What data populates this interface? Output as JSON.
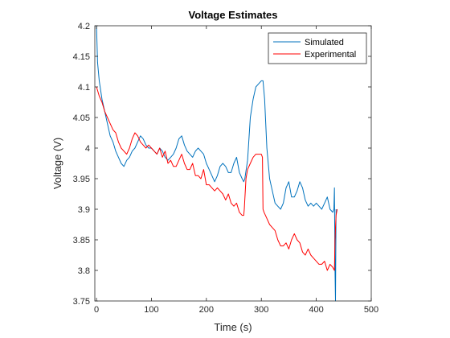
{
  "chart_data": {
    "type": "line",
    "title": "Voltage Estimates",
    "xlabel": "Time (s)",
    "ylabel": "Voltage (V)",
    "xlim": [
      -3,
      500
    ],
    "ylim": [
      3.75,
      4.2
    ],
    "xticks": [
      0,
      100,
      200,
      300,
      400,
      500
    ],
    "xtick_labels": [
      "0",
      "100",
      "200",
      "300",
      "400",
      "500"
    ],
    "yticks": [
      3.75,
      3.8,
      3.85,
      3.9,
      3.95,
      4.0,
      4.05,
      4.1,
      4.15,
      4.2
    ],
    "ytick_labels": [
      "3.75",
      "3.8",
      "3.85",
      "3.9",
      "3.95",
      "4",
      "4.05",
      "4.1",
      "4.15",
      "4.2"
    ],
    "grid": false,
    "legend_position": "top-right",
    "series": [
      {
        "name": "Simulated",
        "color": "#0072BD",
        "x": [
          0,
          2,
          5,
          10,
          15,
          20,
          25,
          30,
          35,
          40,
          45,
          50,
          55,
          60,
          65,
          70,
          75,
          80,
          85,
          90,
          95,
          100,
          105,
          110,
          115,
          120,
          125,
          130,
          135,
          140,
          145,
          150,
          155,
          160,
          165,
          170,
          175,
          180,
          185,
          190,
          195,
          200,
          205,
          210,
          215,
          220,
          225,
          230,
          235,
          240,
          245,
          250,
          255,
          260,
          265,
          268,
          270,
          275,
          280,
          285,
          290,
          295,
          300,
          303,
          306,
          310,
          315,
          320,
          325,
          330,
          335,
          340,
          345,
          350,
          355,
          360,
          365,
          370,
          375,
          380,
          385,
          390,
          395,
          400,
          405,
          410,
          415,
          420,
          425,
          430,
          432,
          433,
          434,
          435,
          436
        ],
        "y": [
          4.2,
          4.14,
          4.11,
          4.08,
          4.06,
          4.04,
          4.02,
          4.01,
          3.995,
          3.985,
          3.975,
          3.97,
          3.98,
          3.985,
          3.995,
          4.0,
          4.01,
          4.02,
          4.015,
          4.005,
          4.0,
          4.0,
          3.995,
          3.99,
          4.0,
          3.995,
          3.985,
          3.98,
          3.985,
          3.99,
          4.0,
          4.015,
          4.02,
          4.005,
          3.995,
          3.99,
          3.985,
          3.995,
          4.0,
          3.995,
          3.99,
          3.975,
          3.965,
          3.955,
          3.945,
          3.955,
          3.97,
          3.975,
          3.97,
          3.96,
          3.96,
          3.975,
          3.985,
          3.96,
          3.95,
          3.945,
          3.95,
          3.98,
          4.05,
          4.08,
          4.1,
          4.105,
          4.11,
          4.11,
          4.08,
          4.0,
          3.95,
          3.93,
          3.91,
          3.905,
          3.9,
          3.91,
          3.935,
          3.945,
          3.92,
          3.92,
          3.93,
          3.945,
          3.935,
          3.915,
          3.905,
          3.91,
          3.905,
          3.91,
          3.905,
          3.9,
          3.91,
          3.92,
          3.9,
          3.895,
          3.9,
          3.935,
          3.8,
          3.75,
          3.9
        ]
      },
      {
        "name": "Experimental",
        "color": "#FF0000",
        "x": [
          0,
          5,
          10,
          15,
          20,
          25,
          30,
          35,
          40,
          45,
          50,
          55,
          60,
          65,
          70,
          75,
          80,
          85,
          90,
          95,
          100,
          105,
          110,
          115,
          120,
          125,
          130,
          135,
          140,
          145,
          150,
          155,
          160,
          165,
          170,
          175,
          180,
          185,
          190,
          195,
          200,
          205,
          210,
          215,
          220,
          225,
          230,
          235,
          240,
          245,
          250,
          255,
          260,
          265,
          268,
          269,
          272,
          275,
          280,
          285,
          290,
          295,
          300,
          302,
          303,
          305,
          310,
          315,
          320,
          325,
          330,
          335,
          340,
          345,
          350,
          355,
          360,
          365,
          370,
          375,
          380,
          385,
          390,
          395,
          400,
          405,
          410,
          415,
          420,
          425,
          430,
          433,
          434,
          435,
          436,
          438
        ],
        "y": [
          4.1,
          4.085,
          4.075,
          4.06,
          4.05,
          4.04,
          4.03,
          4.025,
          4.01,
          4.0,
          3.995,
          3.99,
          4.0,
          4.015,
          4.025,
          4.02,
          4.01,
          4.005,
          4.0,
          4.005,
          4.0,
          3.995,
          3.99,
          4.0,
          3.985,
          3.995,
          3.975,
          3.98,
          3.97,
          3.97,
          3.98,
          3.99,
          3.975,
          3.965,
          3.965,
          3.975,
          3.955,
          3.955,
          3.95,
          3.965,
          3.94,
          3.94,
          3.935,
          3.93,
          3.935,
          3.93,
          3.925,
          3.915,
          3.925,
          3.91,
          3.905,
          3.91,
          3.895,
          3.89,
          3.89,
          3.9,
          3.95,
          3.965,
          3.975,
          3.985,
          3.99,
          3.99,
          3.99,
          3.985,
          3.9,
          3.895,
          3.885,
          3.875,
          3.87,
          3.865,
          3.85,
          3.84,
          3.84,
          3.845,
          3.835,
          3.85,
          3.86,
          3.85,
          3.845,
          3.83,
          3.825,
          3.835,
          3.825,
          3.82,
          3.815,
          3.81,
          3.81,
          3.815,
          3.8,
          3.81,
          3.805,
          3.8,
          3.85,
          3.87,
          3.89,
          3.9
        ]
      }
    ]
  }
}
